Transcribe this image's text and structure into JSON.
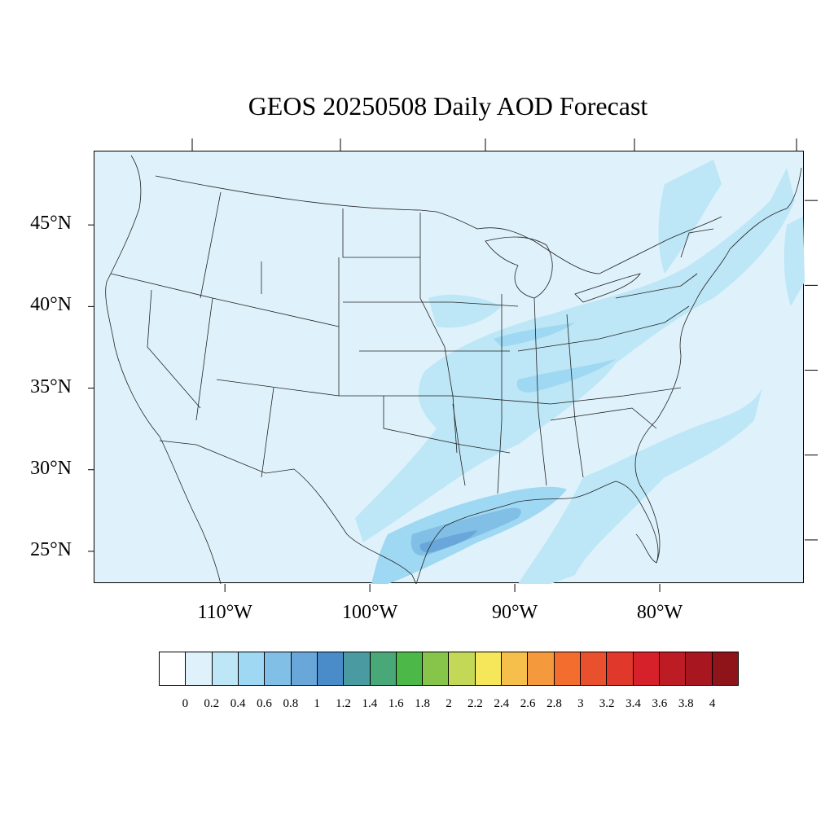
{
  "title": "GEOS 20250508 Daily AOD Forecast",
  "map": {
    "extent": {
      "lon": [
        -119,
        -70
      ],
      "lat": [
        23,
        49.5
      ]
    },
    "lat_labels": [
      {
        "lat": 45,
        "text": "45°N"
      },
      {
        "lat": 40,
        "text": "40°N"
      },
      {
        "lat": 35,
        "text": "35°N"
      },
      {
        "lat": 30,
        "text": "30°N"
      },
      {
        "lat": 25,
        "text": "25°N"
      }
    ],
    "lon_labels": [
      {
        "lon": -110,
        "text": "110°W"
      },
      {
        "lon": -100,
        "text": "100°W"
      },
      {
        "lon": -90,
        "text": "90°W"
      },
      {
        "lon": -80,
        "text": "80°W"
      }
    ],
    "background_level": "0.2-0.4",
    "aod_regions_description_levels": [
      "0.4-0.6",
      "0.6-0.8",
      "0.8-1"
    ]
  },
  "colorbar": {
    "colors": [
      "#ffffff",
      "#dff2fb",
      "#bde6f6",
      "#9fd8f2",
      "#82bfe6",
      "#69a7da",
      "#4a8bc9",
      "#4a9aa2",
      "#48a878",
      "#4cb848",
      "#86c54a",
      "#c2d856",
      "#f6e75a",
      "#f6bf4c",
      "#f59a3c",
      "#f26d2e",
      "#e9502d",
      "#e0382b",
      "#d6202a",
      "#be1c24",
      "#a8171f",
      "#8e141a"
    ],
    "labels": [
      "0",
      "0.2",
      "0.4",
      "0.6",
      "0.8",
      "1",
      "1.2",
      "1.4",
      "1.6",
      "1.8",
      "2",
      "2.2",
      "2.4",
      "2.6",
      "2.8",
      "3",
      "3.2",
      "3.4",
      "3.6",
      "3.8",
      "4"
    ]
  }
}
